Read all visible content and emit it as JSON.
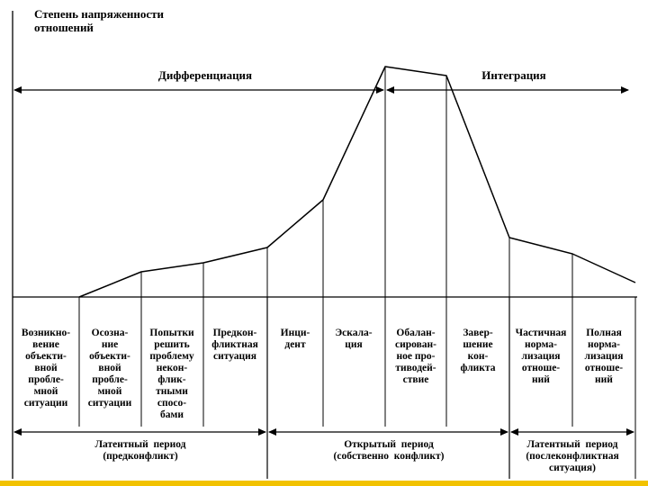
{
  "y_axis_label": [
    "Степень напряженности",
    "отношений"
  ],
  "regions": {
    "differentiation": "Дифференциация",
    "integration": "Интеграция"
  },
  "stages": [
    {
      "lines": [
        "Возникно-",
        "вение",
        "объекти-",
        "вной",
        "пробле-",
        "мной",
        "ситуации"
      ]
    },
    {
      "lines": [
        "Осозна-",
        "ние",
        "объекти-",
        "вной",
        "пробле-",
        "мной",
        "ситуации"
      ]
    },
    {
      "lines": [
        "Попытки",
        "решить",
        "проблему",
        "некон-",
        "флик-",
        "тными",
        "спосо-",
        "бами"
      ]
    },
    {
      "lines": [
        "Предкон-",
        "фликтная",
        "ситуация"
      ]
    },
    {
      "lines": [
        "Инци-",
        "дент"
      ]
    },
    {
      "lines": [
        "Эскала-",
        "ция"
      ]
    },
    {
      "lines": [
        "Обалан-",
        "сирован-",
        "ное про-",
        "тиводей-",
        "ствие"
      ]
    },
    {
      "lines": [
        "Завер-",
        "шение",
        "кон-",
        "фликта"
      ]
    },
    {
      "lines": [
        "Частичная",
        "норма-",
        "лизация",
        "отноше-",
        "ний"
      ]
    },
    {
      "lines": [
        "Полная",
        "норма-",
        "лизация",
        "отноше-",
        "ний"
      ]
    }
  ],
  "periods": [
    {
      "lines": [
        "Латентный  период",
        "(предконфликт)"
      ]
    },
    {
      "lines": [
        "Открытый  период",
        "(собственно  конфликт)"
      ]
    },
    {
      "lines": [
        "Латентный  период",
        "(послеконфликтная",
        "ситуация)"
      ]
    }
  ],
  "colors": {
    "ink": "#000000",
    "footer": "#f2c200"
  }
}
